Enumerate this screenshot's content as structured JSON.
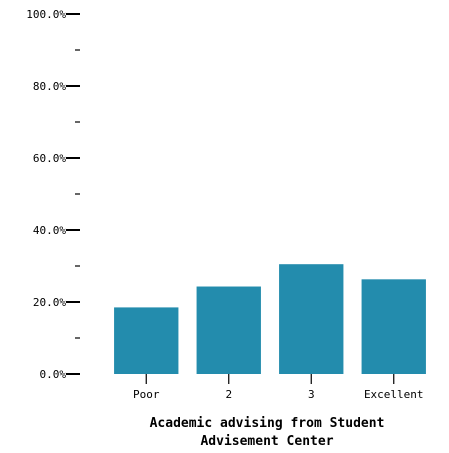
{
  "chart_data": {
    "type": "bar",
    "categories": [
      "Poor",
      "2",
      "3",
      "Excellent"
    ],
    "values": [
      18.5,
      24.3,
      30.5,
      26.3
    ],
    "ylim": [
      0,
      100
    ],
    "y_ticks": [
      {
        "value": 0,
        "label": "0.0%"
      },
      {
        "value": 10,
        "label": ""
      },
      {
        "value": 20,
        "label": "20.0%"
      },
      {
        "value": 30,
        "label": ""
      },
      {
        "value": 40,
        "label": "40.0%"
      },
      {
        "value": 50,
        "label": ""
      },
      {
        "value": 60,
        "label": "60.0%"
      },
      {
        "value": 70,
        "label": ""
      },
      {
        "value": 80,
        "label": "80.0%"
      },
      {
        "value": 90,
        "label": ""
      },
      {
        "value": 100,
        "label": "100.0%"
      }
    ],
    "xlabel_lines": [
      "Academic advising from Student",
      "Advisement Center"
    ],
    "grid": false,
    "bar_color": "#238cad"
  }
}
